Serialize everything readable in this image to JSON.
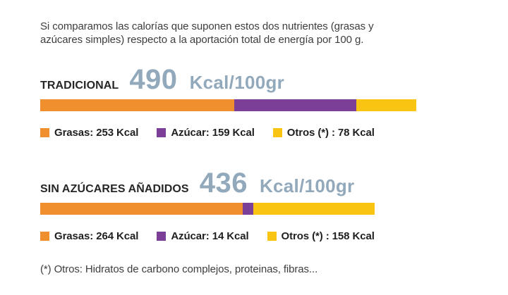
{
  "intro": {
    "text": "Si comparamos las calorías que suponen estos dos nutrientes (grasas y azúcares simples) respecto a la aportación total de energía por 100 g."
  },
  "colors": {
    "grasas": "#EF8F2D",
    "azucar": "#7B3F97",
    "otros": "#F9C412",
    "kcal_text": "#92A9BC"
  },
  "sections": [
    {
      "label": "TRADICIONAL",
      "value": "490",
      "unit": "Kcal/100gr",
      "legend": [
        {
          "label": "Grasas: 253 Kcal"
        },
        {
          "label": "Azúcar: 159 Kcal"
        },
        {
          "label": "Otros (*) : 78 Kcal"
        }
      ]
    },
    {
      "label": "SIN AZÚCARES AÑADIDOS",
      "value": "436",
      "unit": "Kcal/100gr",
      "legend": [
        {
          "label": "Grasas: 264 Kcal"
        },
        {
          "label": "Azúcar: 14 Kcal"
        },
        {
          "label": "Otros (*) : 158 Kcal"
        }
      ]
    }
  ],
  "footnote": "(*) Otros: Hidratos de carbono complejos, proteinas, fibras...",
  "chart_data": [
    {
      "type": "bar",
      "title": "TRADICIONAL",
      "total_kcal_per_100g": 490,
      "unit": "Kcal/100gr",
      "layout": "horizontal stacked bar; bar length proportional to total kcal",
      "segments": [
        {
          "key": "grasas",
          "label": "Grasas",
          "value": 253,
          "color": "#EF8F2D"
        },
        {
          "key": "azucar",
          "label": "Azúcar",
          "value": 159,
          "color": "#7B3F97"
        },
        {
          "key": "otros",
          "label": "Otros (*)",
          "value": 78,
          "color": "#F9C412"
        }
      ]
    },
    {
      "type": "bar",
      "title": "SIN AZÚCARES AÑADIDOS",
      "total_kcal_per_100g": 436,
      "unit": "Kcal/100gr",
      "layout": "horizontal stacked bar; bar length proportional to total kcal",
      "segments": [
        {
          "key": "grasas",
          "label": "Grasas",
          "value": 264,
          "color": "#EF8F2D"
        },
        {
          "key": "azucar",
          "label": "Azúcar",
          "value": 14,
          "color": "#7B3F97"
        },
        {
          "key": "otros",
          "label": "Otros (*)",
          "value": 158,
          "color": "#F9C412"
        }
      ]
    }
  ]
}
